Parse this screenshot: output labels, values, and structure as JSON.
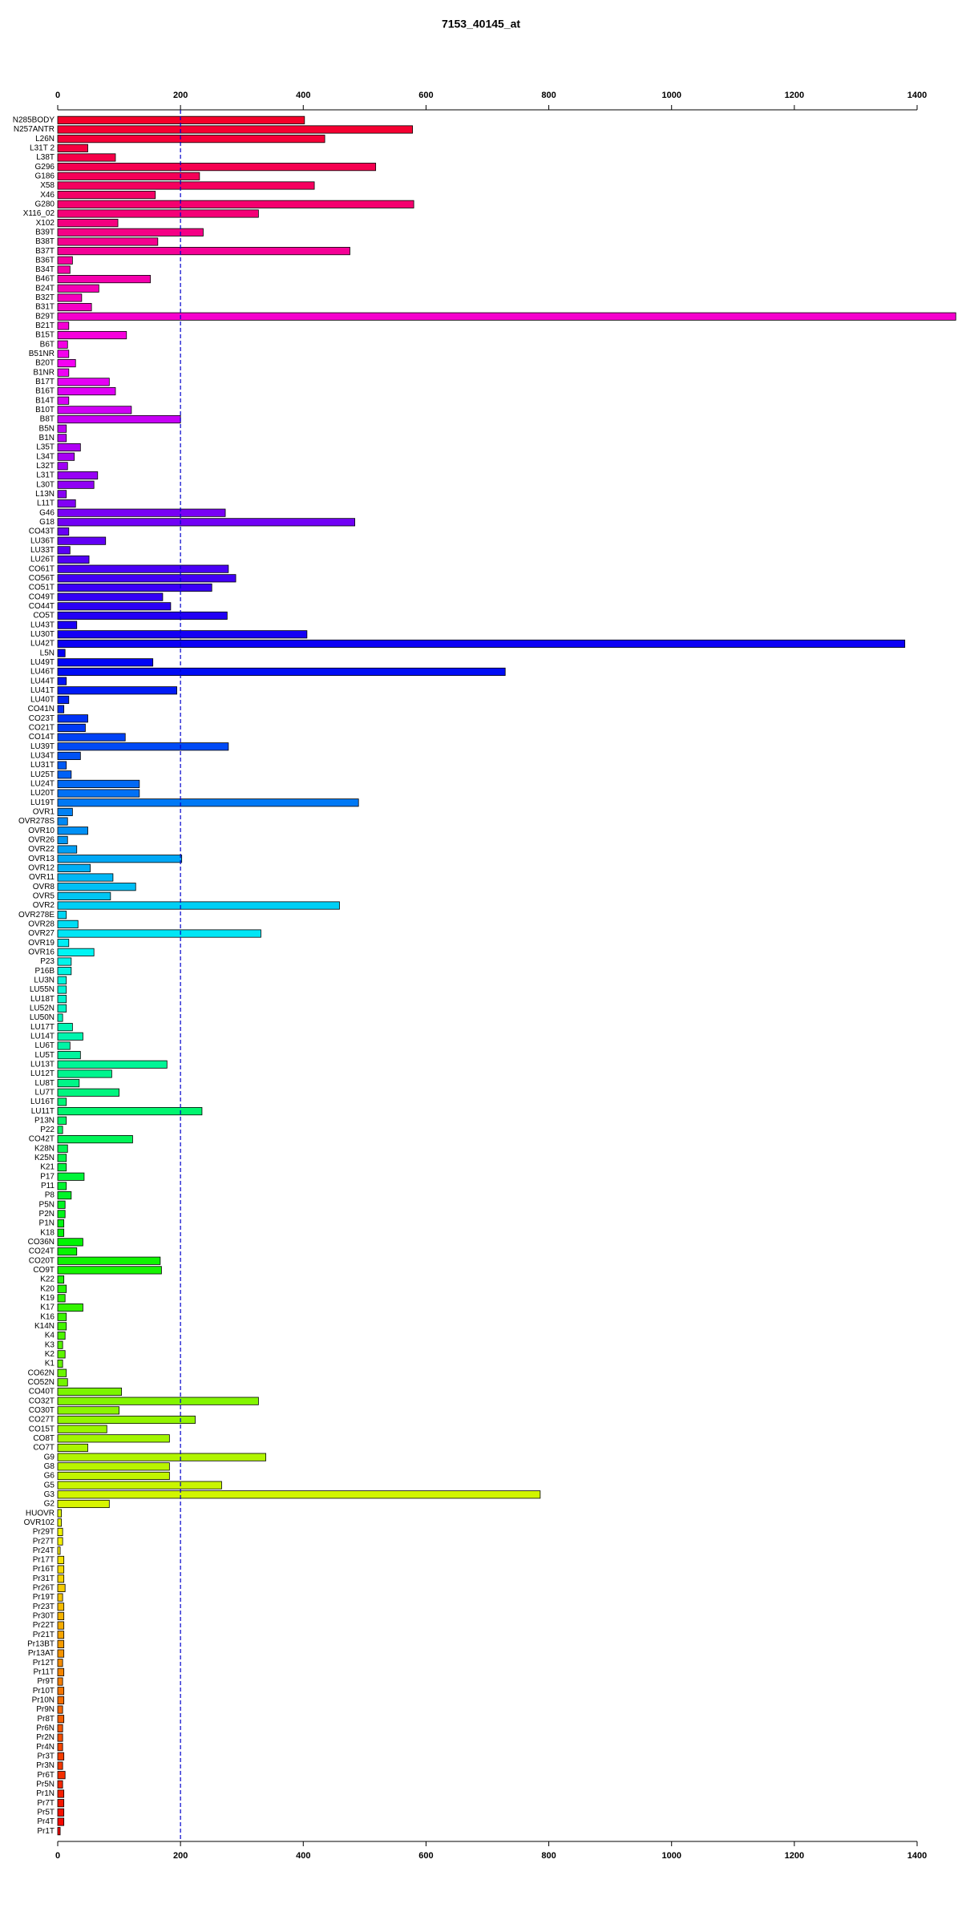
{
  "chart_data": {
    "type": "barh",
    "title": "7153_40145_at",
    "categories": [
      "N285BODY",
      "N257ANTR",
      "L26N",
      "L31T 2",
      "L38T",
      "G296",
      "G186",
      "X58",
      "X46",
      "G280",
      "X116_02",
      "X102",
      "B39T",
      "B38T",
      "B37T",
      "B36T",
      "B34T",
      "B46T",
      "B24T",
      "B32T",
      "B31T",
      "B29T",
      "B21T",
      "B15T",
      "B6T",
      "B51NR",
      "B20T",
      "B1NR",
      "B17T",
      "B16T",
      "B14T",
      "B10T",
      "B8T",
      "B5N",
      "B1N",
      "L35T",
      "L34T",
      "L32T",
      "L31T",
      "L30T",
      "L13N",
      "L11T",
      "G46",
      "G18",
      "CO43T",
      "LU36T",
      "LU33T",
      "LU26T",
      "CO61T",
      "CO56T",
      "CO51T",
      "CO49T",
      "CO44T",
      "CO5T",
      "LU43T",
      "LU30T",
      "LU42T",
      "L5N",
      "LU49T",
      "LU46T",
      "LU44T",
      "LU41T",
      "LU40T",
      "CO41N",
      "CO23T",
      "CO21T",
      "CO14T",
      "LU39T",
      "LU34T",
      "LU31T",
      "LU25T",
      "LU24T",
      "LU20T",
      "LU19T",
      "OVR1",
      "OVR278S",
      "OVR10",
      "OVR26",
      "OVR22",
      "OVR13",
      "OVR12",
      "OVR11",
      "OVR8",
      "OVR5",
      "OVR2",
      "OVR278E",
      "OVR28",
      "OVR27",
      "OVR19",
      "OVR16",
      "P23",
      "P16B",
      "LU3N",
      "LU55N",
      "LU18T",
      "LU52N",
      "LU50N",
      "LU17T",
      "LU14T",
      "LU6T",
      "LU5T",
      "LU13T",
      "LU12T",
      "LU8T",
      "LU7T",
      "LU16T",
      "LU11T",
      "P13N",
      "P22",
      "CO42T",
      "K28N",
      "K25N",
      "K21",
      "P17",
      "P11",
      "P8",
      "P5N",
      "P2N",
      "P1N",
      "K18",
      "CO36N",
      "CO24T",
      "CO20T",
      "CO9T",
      "K22",
      "K20",
      "K19",
      "K17",
      "K16",
      "K14N",
      "K4",
      "K3",
      "K2",
      "K1",
      "CO62N",
      "CO52N",
      "CO40T",
      "CO32T",
      "CO30T",
      "CO27T",
      "CO15T",
      "CO8T",
      "CO7T",
      "G9",
      "G8",
      "G6",
      "G5",
      "G3",
      "G2",
      "HUOVR",
      "OVR102",
      "Pr29T",
      "Pr27T",
      "Pr24T",
      "Pr17T",
      "Pr16T",
      "Pr31T",
      "Pr26T",
      "Pr19T",
      "Pr23T",
      "Pr30T",
      "Pr22T",
      "Pr21T",
      "Pr13BT",
      "Pr13AT",
      "Pr12T",
      "Pr11T",
      "Pr9T",
      "Pr10T",
      "Pr10N",
      "Pr9N",
      "Pr8T",
      "Pr6N",
      "Pr2N",
      "Pr4N",
      "Pr3T",
      "Pr3N",
      "Pr6T",
      "Pr5N",
      "Pr1N",
      "Pr7T",
      "Pr5T",
      "Pr4T",
      "Pr1T"
    ],
    "values": [
      402,
      578,
      435,
      49,
      94,
      518,
      231,
      418,
      159,
      580,
      327,
      98,
      237,
      163,
      476,
      24,
      20,
      151,
      67,
      39,
      55,
      1463,
      18,
      112,
      16,
      18,
      29,
      18,
      84,
      94,
      18,
      120,
      200,
      14,
      14,
      37,
      27,
      16,
      65,
      59,
      14,
      29,
      273,
      484,
      18,
      78,
      20,
      51,
      278,
      290,
      251,
      171,
      184,
      276,
      31,
      406,
      1380,
      12,
      155,
      729,
      14,
      194,
      18,
      10,
      49,
      45,
      110,
      278,
      37,
      14,
      22,
      133,
      133,
      490,
      24,
      16,
      49,
      16,
      31,
      202,
      53,
      90,
      127,
      86,
      459,
      14,
      33,
      331,
      18,
      59,
      22,
      22,
      14,
      14,
      14,
      14,
      8,
      24,
      41,
      20,
      37,
      178,
      88,
      35,
      100,
      14,
      235,
      14,
      8,
      122,
      16,
      14,
      14,
      43,
      14,
      22,
      12,
      12,
      10,
      10,
      41,
      31,
      167,
      169,
      10,
      14,
      12,
      41,
      14,
      14,
      12,
      8,
      12,
      8,
      14,
      16,
      104,
      327,
      100,
      224,
      80,
      182,
      49,
      339,
      182,
      182,
      267,
      786,
      84,
      6,
      6,
      8,
      8,
      4,
      10,
      10,
      10,
      12,
      8,
      10,
      10,
      10,
      10,
      10,
      10,
      8,
      10,
      8,
      10,
      10,
      8,
      10,
      8,
      8,
      8,
      10,
      8,
      12,
      8,
      10,
      10,
      10,
      10,
      4
    ],
    "color_scheme": "rainbow",
    "xlim": [
      0,
      1400
    ],
    "xticks": [
      0,
      200,
      400,
      600,
      800,
      1000,
      1200,
      1400
    ],
    "reference_line": 200,
    "reference_color": "#0000cc"
  }
}
